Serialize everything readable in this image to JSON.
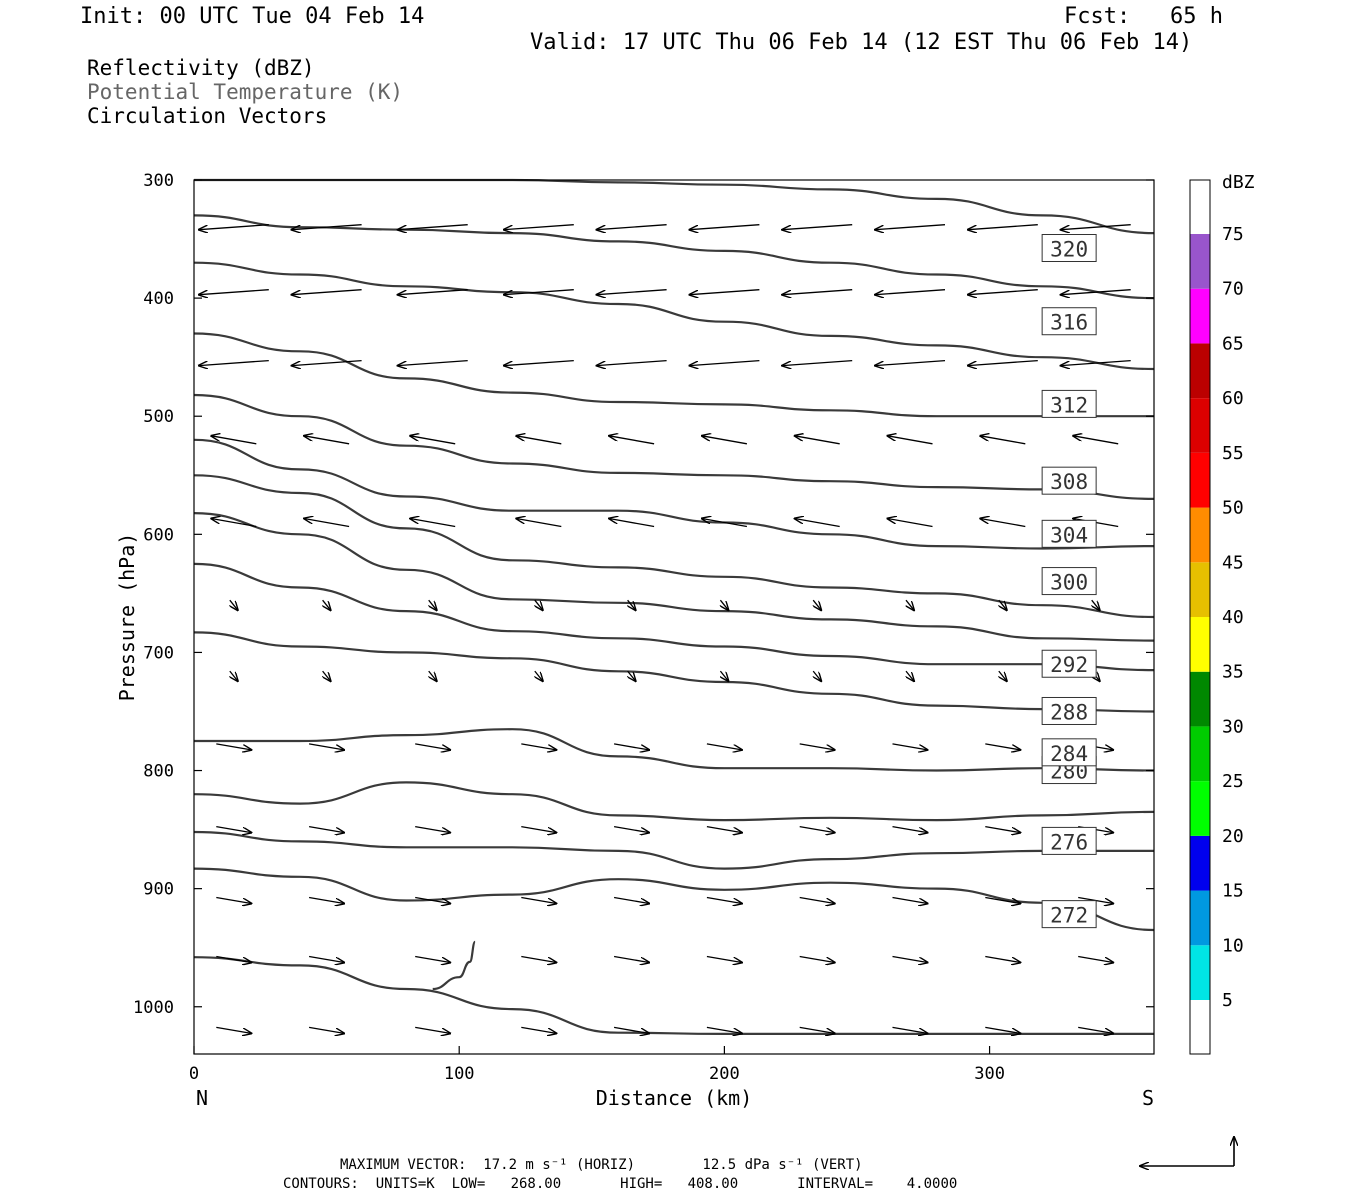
{
  "header": {
    "init": "Init: 00 UTC Tue 04 Feb 14",
    "fcst": "Fcst:   65 h",
    "valid": "Valid: 17 UTC Thu 06 Feb 14 (12 EST Thu 06 Feb 14)"
  },
  "legend": {
    "line1": "Reflectivity (dBZ)",
    "line2": "Potential Temperature (K)",
    "line3": "Circulation Vectors"
  },
  "footer": {
    "line1": "MAXIMUM VECTOR:  17.2 m s⁻¹ (HORIZ)        12.5 dPa s⁻¹ (VERT)",
    "line2": "CONTOURS:  UNITS=K  LOW=   268.00       HIGH=   408.00       INTERVAL=    4.0000"
  },
  "chart_data": {
    "type": "line",
    "xlabel": "Distance (km)",
    "ylabel": "Pressure (hPa)",
    "x_start_label": "N",
    "x_end_label": "S",
    "xlim": [
      0,
      362
    ],
    "ylim": [
      300,
      1040
    ],
    "y_reversed": true,
    "x_ticks": [
      0,
      100,
      200,
      300
    ],
    "y_ticks": [
      300,
      400,
      500,
      600,
      700,
      800,
      900,
      1000
    ],
    "colorbar": {
      "title": "dBZ",
      "levels": [
        5,
        10,
        15,
        20,
        25,
        30,
        35,
        40,
        45,
        50,
        55,
        60,
        65,
        70,
        75
      ],
      "colors": [
        "#ffffff",
        "#00e5e5",
        "#0099e0",
        "#0000ee",
        "#00ff00",
        "#00cc00",
        "#008800",
        "#ffff00",
        "#e6c000",
        "#ff8c00",
        "#ff0000",
        "#dd0000",
        "#bb0000",
        "#ff00ff",
        "#9955cc",
        "#ffffff"
      ]
    },
    "series": [
      {
        "name": "268",
        "x": [
          0,
          40,
          80,
          120,
          160,
          200,
          250,
          300,
          362
        ],
        "y": [
          958,
          965,
          985,
          1002,
          1022,
          1023,
          1023,
          1023,
          1023
        ],
        "label_at": null
      },
      {
        "name": "268",
        "x": [
          106,
          104,
          100,
          90
        ],
        "y": [
          945,
          962,
          975,
          985
        ],
        "label_at": null
      },
      {
        "name": "272",
        "x": [
          0,
          40,
          80,
          120,
          160,
          200,
          240,
          280,
          320,
          362
        ],
        "y": [
          883,
          890,
          910,
          905,
          892,
          901,
          895,
          900,
          912,
          935
        ],
        "label_at": [
          330,
          922
        ]
      },
      {
        "name": "276",
        "x": [
          0,
          40,
          80,
          120,
          160,
          200,
          240,
          280,
          320,
          362
        ],
        "y": [
          852,
          860,
          865,
          865,
          868,
          883,
          875,
          870,
          868,
          868
        ],
        "label_at": [
          330,
          860
        ]
      },
      {
        "name": "280",
        "x": [
          0,
          40,
          80,
          120,
          160,
          200,
          240,
          280,
          320,
          362
        ],
        "y": [
          820,
          828,
          810,
          820,
          838,
          842,
          840,
          842,
          838,
          835
        ],
        "label_at": [
          330,
          800
        ]
      },
      {
        "name": "284",
        "x": [
          0,
          40,
          80,
          120,
          160,
          200,
          240,
          280,
          320,
          362
        ],
        "y": [
          775,
          775,
          770,
          765,
          788,
          798,
          798,
          800,
          798,
          800
        ],
        "label_at": [
          330,
          785
        ]
      },
      {
        "name": "288",
        "x": [
          0,
          40,
          80,
          120,
          160,
          200,
          240,
          280,
          320,
          362
        ],
        "y": [
          683,
          695,
          700,
          705,
          716,
          725,
          735,
          745,
          748,
          750
        ],
        "label_at": [
          330,
          750
        ]
      },
      {
        "name": "292",
        "x": [
          0,
          40,
          80,
          120,
          160,
          200,
          240,
          280,
          320,
          362
        ],
        "y": [
          625,
          645,
          665,
          682,
          688,
          695,
          703,
          710,
          710,
          715
        ],
        "label_at": [
          330,
          710
        ]
      },
      {
        "name": "296",
        "x": [
          0,
          40,
          80,
          120,
          160,
          200,
          240,
          280,
          320,
          362
        ],
        "y": [
          582,
          600,
          630,
          655,
          658,
          665,
          672,
          678,
          688,
          690
        ],
        "label_at": null
      },
      {
        "name": "300",
        "x": [
          0,
          40,
          80,
          120,
          160,
          200,
          240,
          280,
          320,
          362
        ],
        "y": [
          550,
          565,
          595,
          622,
          628,
          636,
          645,
          650,
          660,
          670
        ],
        "label_at": [
          330,
          640
        ]
      },
      {
        "name": "304",
        "x": [
          0,
          40,
          80,
          120,
          160,
          200,
          240,
          280,
          320,
          362
        ],
        "y": [
          520,
          545,
          568,
          580,
          580,
          590,
          600,
          610,
          612,
          610
        ],
        "label_at": [
          330,
          600
        ]
      },
      {
        "name": "308",
        "x": [
          0,
          40,
          80,
          120,
          160,
          200,
          240,
          280,
          320,
          362
        ],
        "y": [
          482,
          500,
          525,
          540,
          548,
          550,
          555,
          560,
          562,
          570
        ],
        "label_at": [
          330,
          555
        ]
      },
      {
        "name": "312",
        "x": [
          0,
          40,
          80,
          120,
          160,
          200,
          240,
          280,
          320,
          362
        ],
        "y": [
          430,
          445,
          468,
          480,
          488,
          490,
          495,
          500,
          500,
          500
        ],
        "label_at": [
          330,
          490
        ]
      },
      {
        "name": "316",
        "x": [
          0,
          40,
          80,
          120,
          160,
          200,
          240,
          280,
          320,
          362
        ],
        "y": [
          370,
          380,
          390,
          395,
          405,
          420,
          432,
          440,
          450,
          460
        ],
        "label_at": [
          330,
          420
        ]
      },
      {
        "name": "320",
        "x": [
          0,
          40,
          80,
          120,
          160,
          200,
          240,
          280,
          320,
          362
        ],
        "y": [
          330,
          340,
          342,
          345,
          352,
          360,
          370,
          380,
          390,
          400
        ],
        "label_at": [
          330,
          358
        ]
      },
      {
        "name": "324",
        "x": [
          0,
          40,
          80,
          120,
          160,
          200,
          240,
          280,
          320,
          362
        ],
        "y": [
          300,
          300,
          300,
          300,
          302,
          304,
          308,
          316,
          330,
          345
        ],
        "label_at": null
      }
    ],
    "vectors_note": "Circulation vectors: westward (toward N) above ~650 hPa, weak/variable 650-780 hPa, eastward (toward S) below ~780 hPa"
  },
  "reference_vector": {
    "name": "reference-vector"
  }
}
